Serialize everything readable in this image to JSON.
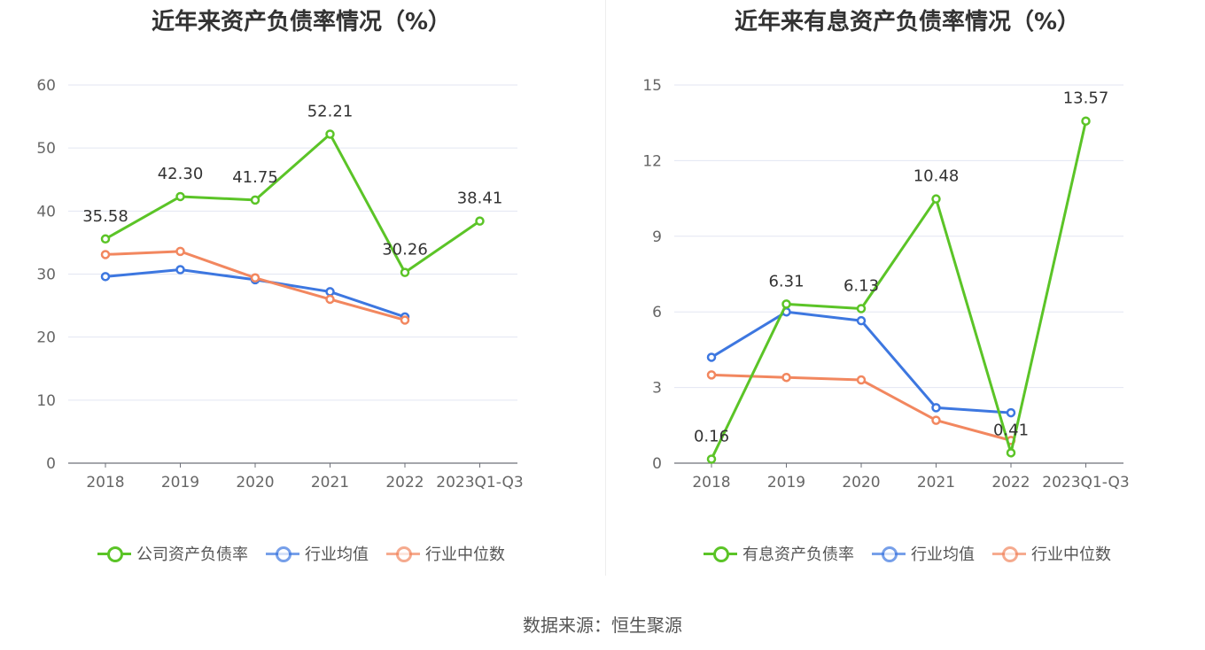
{
  "source": "数据来源：恒生聚源",
  "chart_data": [
    {
      "type": "line",
      "title": "近年来资产负债率情况（%）",
      "categories": [
        "2018",
        "2019",
        "2020",
        "2021",
        "2022",
        "2023Q1-Q3"
      ],
      "ylim": [
        0,
        60
      ],
      "yticks": [
        0,
        10,
        20,
        30,
        40,
        50,
        60
      ],
      "grid": true,
      "legend_position": "bottom",
      "series": [
        {
          "name": "公司资产负债率",
          "color": "#5bc427",
          "values": [
            35.58,
            42.3,
            41.75,
            52.21,
            30.26,
            38.41
          ],
          "labels": [
            "35.58",
            "42.30",
            "41.75",
            "52.21",
            "30.26",
            "38.41"
          ]
        },
        {
          "name": "行业均值",
          "color": "#3d77e0",
          "values": [
            29.6,
            30.7,
            29.1,
            27.2,
            23.2,
            null
          ]
        },
        {
          "name": "行业中位数",
          "color": "#f2875f",
          "values": [
            33.1,
            33.6,
            29.4,
            26.0,
            22.7,
            null
          ]
        }
      ]
    },
    {
      "type": "line",
      "title": "近年来有息资产负债率情况（%）",
      "categories": [
        "2018",
        "2019",
        "2020",
        "2021",
        "2022",
        "2023Q1-Q3"
      ],
      "ylim": [
        0,
        15
      ],
      "yticks": [
        0,
        3,
        6,
        9,
        12,
        15
      ],
      "grid": true,
      "legend_position": "bottom",
      "series": [
        {
          "name": "有息资产负债率",
          "color": "#5bc427",
          "values": [
            0.16,
            6.31,
            6.13,
            10.48,
            0.41,
            13.57
          ],
          "labels": [
            "0.16",
            "6.31",
            "6.13",
            "10.48",
            "0.41",
            "13.57"
          ]
        },
        {
          "name": "行业均值",
          "color": "#3d77e0",
          "values": [
            4.2,
            6.0,
            5.65,
            2.2,
            2.0,
            null
          ]
        },
        {
          "name": "行业中位数",
          "color": "#f2875f",
          "values": [
            3.5,
            3.4,
            3.3,
            1.7,
            0.9,
            null
          ]
        }
      ]
    }
  ]
}
